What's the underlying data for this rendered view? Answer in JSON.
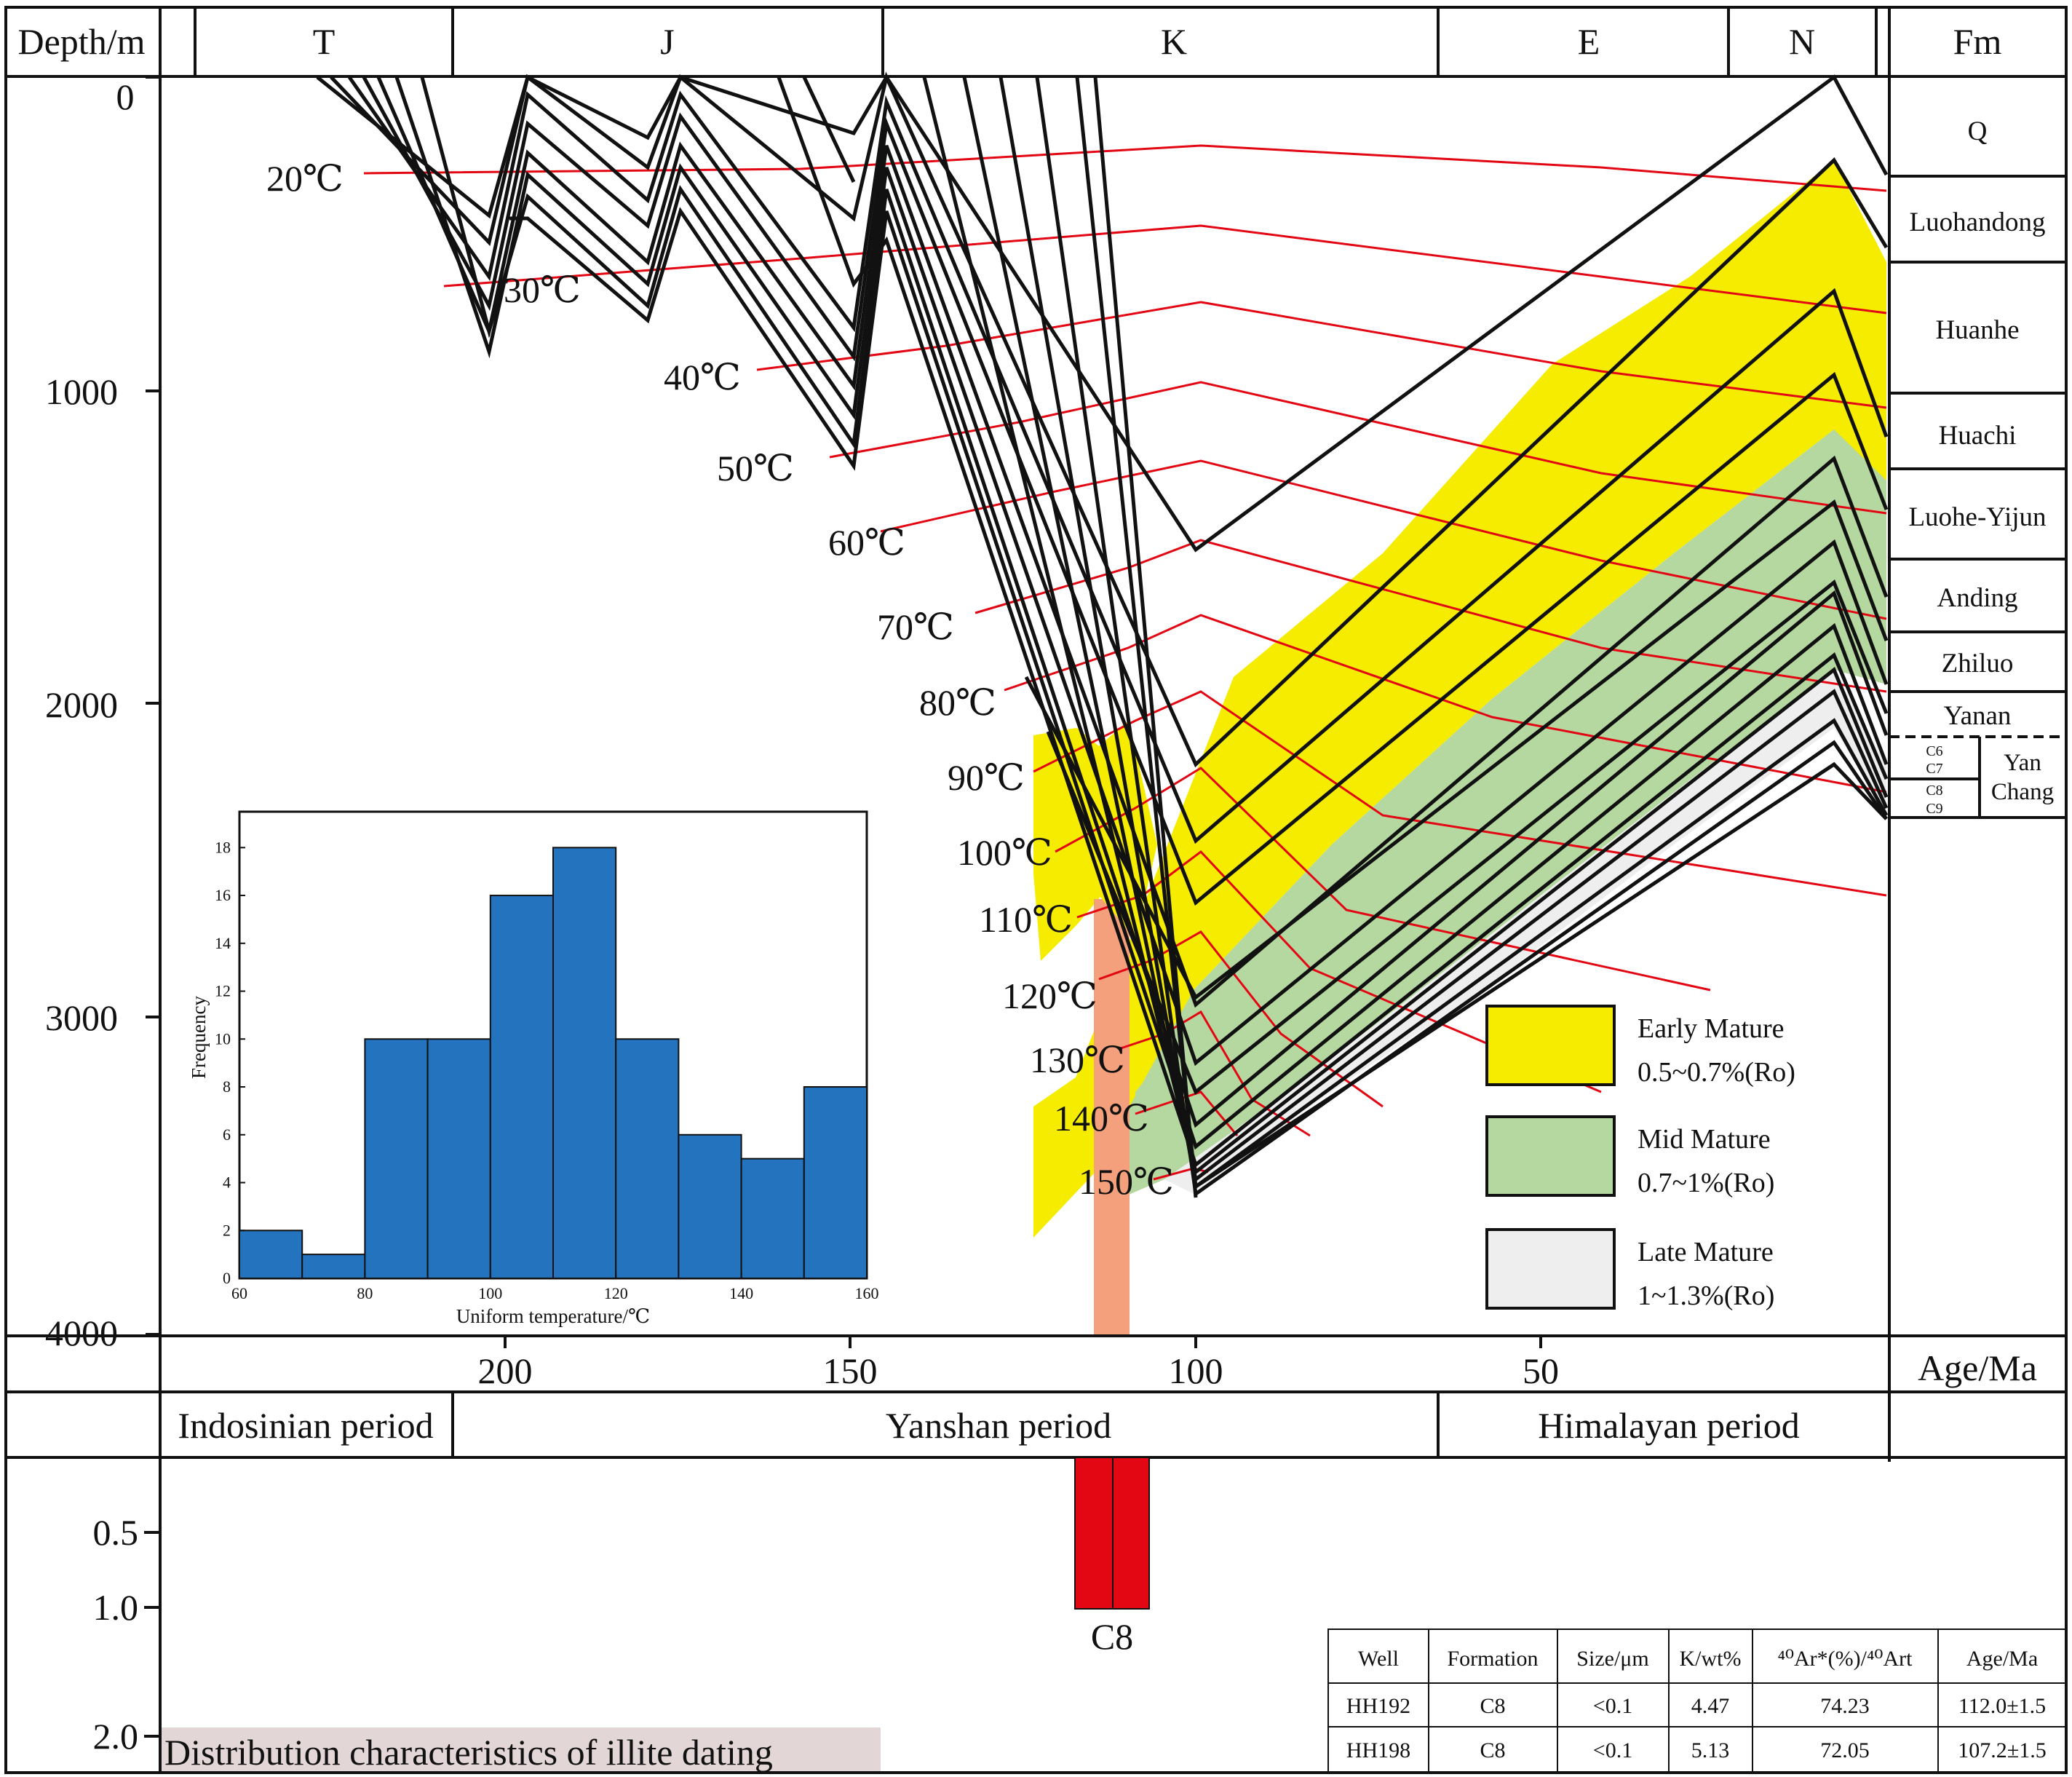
{
  "header": {
    "depth_label": "Depth/m",
    "fm_label": "Fm",
    "periods": [
      "T",
      "J",
      "K",
      "E",
      "N"
    ]
  },
  "depth_ticks": [
    "0",
    "1000",
    "2000",
    "3000",
    "4000"
  ],
  "age_axis": {
    "label": "Age/Ma",
    "ticks": [
      {
        "label": "200",
        "value": 200
      },
      {
        "label": "150",
        "value": 150
      },
      {
        "label": "100",
        "value": 100
      },
      {
        "label": "50",
        "value": 50
      }
    ]
  },
  "formations": [
    "Q",
    "Luohandong",
    "Huanhe",
    "Huachi",
    "Luohe-Yijun",
    "Anding",
    "Zhiluo",
    "Yanan"
  ],
  "yanchang": {
    "sub": [
      "C6",
      "C7",
      "C8",
      "C9"
    ],
    "name_line1": "Yan",
    "name_line2": "Chang"
  },
  "isotherms": [
    "20℃",
    "30℃",
    "40℃",
    "50℃",
    "60℃",
    "70℃",
    "80℃",
    "90℃",
    "100℃",
    "110℃",
    "120℃",
    "130℃",
    "140℃",
    "150℃"
  ],
  "legend": [
    {
      "name": "Early Mature",
      "range": "0.5~0.7%(Ro)",
      "color": "#f5ec00"
    },
    {
      "name": "Mid Mature",
      "range": "0.7~1%(Ro)",
      "color": "#b5d8a0"
    },
    {
      "name": "Late Mature",
      "range": "1~1.3%(Ro)",
      "color": "#eeeeee"
    }
  ],
  "tectonic_periods": [
    "Indosinian period",
    "Yanshan  period",
    "Himalayan period"
  ],
  "dating": {
    "ticks": [
      "0.5",
      "1.0",
      "2.0"
    ],
    "bar_label": "C8",
    "title": "Distribution characteristics of illite dating",
    "bar_color": "#e30613",
    "band_color": "#f4a07c"
  },
  "histogram": {
    "chart_data": {
      "type": "bar",
      "xlabel": "Uniform temperature/℃",
      "ylabel": "Frequency",
      "bin_edges": [
        60,
        70,
        80,
        90,
        100,
        110,
        120,
        130,
        140,
        150,
        160
      ],
      "values": [
        2,
        1,
        10,
        10,
        16,
        18,
        10,
        6,
        5,
        8
      ],
      "xlim": [
        60,
        160
      ],
      "ylim": [
        0,
        19.5
      ],
      "xticks": [
        60,
        80,
        100,
        120,
        140,
        160
      ],
      "yticks": [
        0,
        2,
        4,
        6,
        8,
        10,
        12,
        14,
        16,
        18
      ],
      "bar_color": "#2473bf"
    }
  },
  "table": {
    "headers": [
      "Well",
      "Formation",
      "Size/μm",
      "K/wt%",
      "⁴⁰Ar*(%)/⁴⁰Art",
      "Age/Ma"
    ],
    "rows": [
      [
        "HH192",
        "C8",
        "<0.1",
        "4.47",
        "74.23",
        "112.0±1.5"
      ],
      [
        "HH198",
        "C8",
        "<0.1",
        "5.13",
        "72.05",
        "107.2±1.5"
      ]
    ]
  }
}
